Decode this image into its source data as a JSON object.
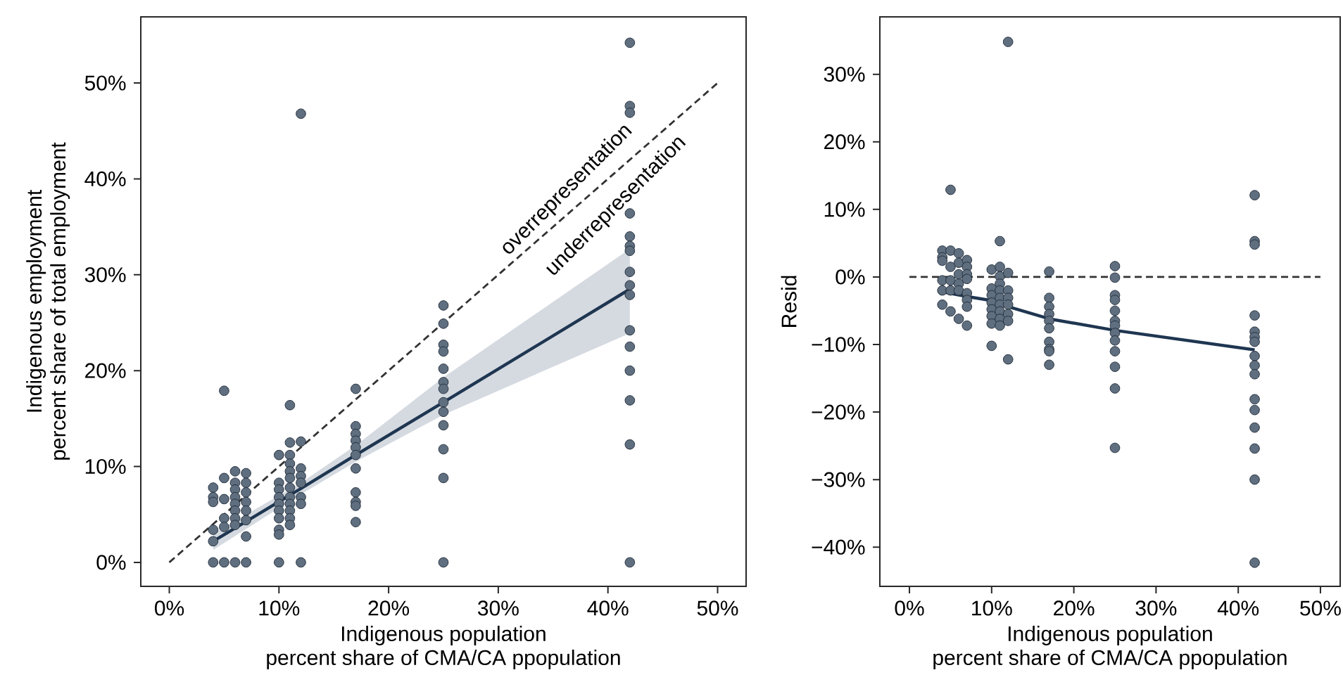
{
  "chart_data": [
    {
      "type": "scatter",
      "xlabel": "Indigenous population\npercent share of CMA/CA ppopulation",
      "ylabel": "Indigenous employment\npercent share of total employment",
      "xlim": [
        -2.6,
        52.6
      ],
      "ylim": [
        -2.5,
        56.9
      ],
      "xticks": [
        {
          "value": 0,
          "label": "0%"
        },
        {
          "value": 10,
          "label": "10%"
        },
        {
          "value": 20,
          "label": "20%"
        },
        {
          "value": 30,
          "label": "30%"
        },
        {
          "value": 40,
          "label": "40%"
        },
        {
          "value": 50,
          "label": "50%"
        }
      ],
      "yticks": [
        {
          "value": 0,
          "label": "0%"
        },
        {
          "value": 10,
          "label": "10%"
        },
        {
          "value": 20,
          "label": "20%"
        },
        {
          "value": 30,
          "label": "30%"
        },
        {
          "value": 40,
          "label": "40%"
        },
        {
          "value": 50,
          "label": "50%"
        }
      ],
      "annotations": [
        "overrepresentation",
        "underrepresentation"
      ],
      "series": [
        {
          "type": "line",
          "color": "#333333",
          "line_style": "dashed",
          "marker": "none",
          "x": [
            0,
            50
          ],
          "values": [
            0,
            50
          ]
        },
        {
          "type": "line",
          "color": "#1f3651",
          "marker": "none",
          "x": [
            4,
            12,
            17,
            25,
            42
          ],
          "values": [
            2.2,
            7.7,
            11.2,
            16.7,
            28.5
          ],
          "lower": [
            1.3,
            7.1,
            10.5,
            15.4,
            23.9
          ],
          "upper": [
            3.0,
            8.3,
            12.2,
            19.3,
            32.7
          ]
        },
        {
          "color": "#5f6f80",
          "marker": "circle",
          "x": [
            4,
            4,
            4,
            4,
            4,
            4,
            5,
            5,
            5,
            5,
            5,
            5,
            6,
            6,
            6,
            6,
            6,
            6,
            6,
            6,
            6,
            7,
            7,
            7,
            7,
            7,
            7,
            7,
            7,
            10,
            10,
            10,
            10,
            10,
            10,
            10,
            10,
            10,
            10,
            11,
            11,
            11,
            11,
            11,
            11,
            11,
            11,
            11,
            11,
            11,
            11,
            12,
            12,
            12,
            12,
            12,
            12,
            12,
            12,
            17,
            17,
            17,
            17,
            17,
            17,
            17,
            17,
            17,
            17,
            17,
            25,
            25,
            25,
            25,
            25,
            25,
            25,
            25,
            25,
            25,
            25,
            25,
            25,
            42,
            42,
            42,
            42,
            42,
            42,
            42,
            42,
            42,
            42,
            42,
            42,
            42,
            42,
            42,
            42
          ],
          "values": [
            7.8,
            6.8,
            6.3,
            3.4,
            2.2,
            0,
            17.9,
            8.8,
            6.6,
            4.6,
            3.7,
            0,
            9.5,
            8.3,
            7.6,
            6.8,
            6.1,
            5.4,
            4.6,
            3.9,
            0,
            9.3,
            8.3,
            7.3,
            6.3,
            5.4,
            4.4,
            2.7,
            0,
            11.2,
            8.3,
            7.6,
            6.8,
            6.1,
            5.4,
            4.6,
            3.4,
            2.9,
            0,
            16.4,
            12.5,
            11.2,
            10.3,
            9.5,
            8.8,
            7.8,
            6.8,
            6.1,
            5.4,
            4.6,
            3.9,
            46.8,
            12.6,
            9.8,
            9.0,
            8.3,
            6.8,
            6.1,
            0,
            18.1,
            14.2,
            13.4,
            12.7,
            12.0,
            11.2,
            9.8,
            7.3,
            6.3,
            5.9,
            4.2,
            26.8,
            24.9,
            22.7,
            22.0,
            20.2,
            18.8,
            18.1,
            16.7,
            15.7,
            14.3,
            11.8,
            8.8,
            0,
            54.2,
            47.6,
            46.9,
            36.4,
            34.0,
            33.0,
            32.5,
            30.3,
            28.9,
            27.9,
            24.2,
            22.5,
            20.0,
            16.9,
            12.3,
            0
          ]
        }
      ]
    },
    {
      "type": "scatter",
      "xlabel": "Indigenous population\npercent share of CMA/CA ppopulation",
      "ylabel": "Resid",
      "xlim": [
        -3.6,
        52.4
      ],
      "ylim": [
        -45.8,
        38.5
      ],
      "xticks": [
        {
          "value": 0,
          "label": "0%"
        },
        {
          "value": 10,
          "label": "10%"
        },
        {
          "value": 20,
          "label": "20%"
        },
        {
          "value": 30,
          "label": "30%"
        },
        {
          "value": 40,
          "label": "40%"
        },
        {
          "value": 50,
          "label": "50%"
        }
      ],
      "yticks": [
        {
          "value": -40,
          "label": "−40%"
        },
        {
          "value": -30,
          "label": "−30%"
        },
        {
          "value": -20,
          "label": "−20%"
        },
        {
          "value": -10,
          "label": "−10%"
        },
        {
          "value": 0,
          "label": "0%"
        },
        {
          "value": 10,
          "label": "10%"
        },
        {
          "value": 20,
          "label": "20%"
        },
        {
          "value": 30,
          "label": "30%"
        }
      ],
      "ref_lines": [
        {
          "axis": "y",
          "value": 0,
          "color": "#333333",
          "line_style": "dashed"
        }
      ],
      "series": [
        {
          "type": "line",
          "color": "#1f3651",
          "marker": "none",
          "x": [
            4,
            7,
            10,
            12,
            17,
            25,
            42
          ],
          "values": [
            -2.2,
            -2.9,
            -3.5,
            -4.4,
            -6.2,
            -7.9,
            -10.8
          ]
        },
        {
          "color": "#5f6f80",
          "marker": "circle",
          "x": [
            4,
            4,
            4,
            4,
            4,
            4,
            5,
            5,
            5,
            5,
            5,
            5,
            6,
            6,
            6,
            6,
            6,
            6,
            7,
            7,
            7,
            7,
            7,
            7,
            7,
            7,
            10,
            10,
            10,
            10,
            10,
            10,
            10,
            10,
            11,
            11,
            11,
            11,
            11,
            11,
            11,
            11,
            11,
            11,
            12,
            12,
            12,
            12,
            12,
            12,
            12,
            12,
            17,
            17,
            17,
            17,
            17,
            17,
            17,
            17,
            17,
            17,
            25,
            25,
            25,
            25,
            25,
            25,
            25,
            25,
            25,
            25,
            25,
            25,
            25,
            42,
            42,
            42,
            42,
            42,
            42,
            42,
            42,
            42,
            42,
            42,
            42,
            42,
            42,
            42,
            42
          ],
          "values": [
            3.9,
            2.9,
            2.4,
            -0.5,
            -2.0,
            -4.1,
            12.9,
            3.9,
            1.5,
            -0.5,
            -2.0,
            -5.1,
            3.5,
            2.1,
            0.4,
            -1.0,
            -2.0,
            -6.2,
            2.5,
            1.5,
            0.4,
            -0.3,
            -2.4,
            -3.4,
            -4.4,
            -7.2,
            1.1,
            -1.7,
            -2.7,
            -3.8,
            -4.8,
            -5.8,
            -6.9,
            -10.2,
            5.3,
            1.5,
            0.1,
            -1.0,
            -2.0,
            -3.1,
            -4.1,
            -5.1,
            -6.2,
            -7.2,
            34.8,
            0.6,
            -2.0,
            -3.1,
            -4.1,
            -5.5,
            -6.5,
            -12.2,
            0.8,
            -3.1,
            -4.4,
            -5.5,
            -6.5,
            -7.6,
            -9.6,
            -10.7,
            -11.0,
            -13.0,
            1.6,
            -0.1,
            -2.7,
            -3.4,
            -5.0,
            -6.5,
            -7.2,
            -8.3,
            -9.4,
            -11.0,
            -13.3,
            -16.5,
            -25.3,
            12.1,
            5.3,
            4.8,
            -5.7,
            -8.1,
            -8.9,
            -9.6,
            -11.7,
            -13.1,
            -14.4,
            -18.1,
            -19.7,
            -22.3,
            -25.4,
            -30.0,
            -42.3
          ]
        }
      ]
    }
  ]
}
